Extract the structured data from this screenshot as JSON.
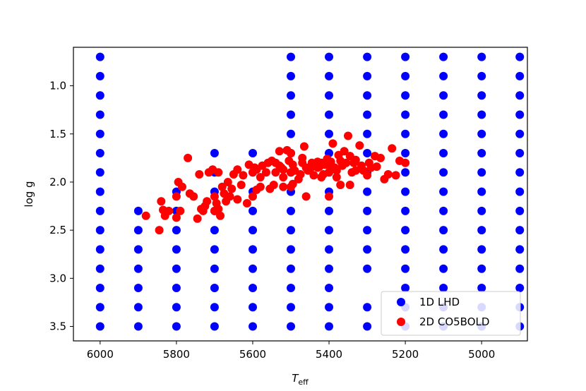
{
  "chart_data": {
    "type": "scatter",
    "title": "",
    "xlabel": "T",
    "xlabel_sub": "eff",
    "ylabel": "log g",
    "xlim": [
      6070,
      4880
    ],
    "ylim": [
      0.6,
      3.65
    ],
    "x_inverted": true,
    "y_inverted": true,
    "xticks": [
      6000,
      5800,
      5600,
      5400,
      5200,
      5000
    ],
    "xtick_labels": [
      "6000",
      "5800",
      "5600",
      "5400",
      "5200",
      "5000"
    ],
    "yticks": [
      1.0,
      1.5,
      2.0,
      2.5,
      3.0,
      3.5
    ],
    "ytick_labels": [
      "1.0",
      "1.5",
      "2.0",
      "2.5",
      "3.0",
      "3.5"
    ],
    "grid": false,
    "legend_position": "bottom-right",
    "series": [
      {
        "name": "1D LHD",
        "color": "#0000ff",
        "grid_teff": [
          6000,
          5900,
          5800,
          5700,
          5600,
          5500,
          5400,
          5300,
          5200,
          5100,
          5000,
          4900
        ],
        "grid_logg": [
          0.7,
          0.9,
          1.1,
          1.3,
          1.5,
          1.7,
          1.9,
          2.1,
          2.3,
          2.5,
          2.7,
          2.9,
          3.1,
          3.3,
          3.5
        ],
        "missing": [
          [
            5900,
            0.7
          ],
          [
            5900,
            0.9
          ],
          [
            5900,
            1.1
          ],
          [
            5900,
            1.3
          ],
          [
            5900,
            1.5
          ],
          [
            5900,
            1.7
          ],
          [
            5900,
            1.9
          ],
          [
            5900,
            2.1
          ],
          [
            5800,
            0.7
          ],
          [
            5800,
            0.9
          ],
          [
            5800,
            1.1
          ],
          [
            5800,
            1.3
          ],
          [
            5800,
            1.5
          ],
          [
            5800,
            1.7
          ],
          [
            5800,
            1.9
          ],
          [
            5700,
            0.7
          ],
          [
            5700,
            0.9
          ],
          [
            5700,
            1.1
          ],
          [
            5700,
            1.3
          ],
          [
            5700,
            1.5
          ],
          [
            5600,
            0.7
          ],
          [
            5600,
            0.9
          ],
          [
            5600,
            1.1
          ],
          [
            5600,
            1.3
          ],
          [
            5600,
            1.5
          ],
          [
            5300,
            3.1
          ]
        ]
      },
      {
        "name": "2D CO5BOLD",
        "color": "#ff0000",
        "points": [
          [
            5880,
            2.35
          ],
          [
            5845,
            2.5
          ],
          [
            5840,
            2.2
          ],
          [
            5830,
            2.35
          ],
          [
            5820,
            2.3
          ],
          [
            5800,
            2.37
          ],
          [
            5790,
            2.3
          ],
          [
            5800,
            2.15
          ],
          [
            5795,
            2.0
          ],
          [
            5785,
            2.05
          ],
          [
            5770,
            1.75
          ],
          [
            5765,
            2.12
          ],
          [
            5755,
            2.15
          ],
          [
            5745,
            2.38
          ],
          [
            5740,
            1.92
          ],
          [
            5730,
            2.3
          ],
          [
            5725,
            2.25
          ],
          [
            5720,
            2.2
          ],
          [
            5715,
            1.9
          ],
          [
            5705,
            1.87
          ],
          [
            5700,
            2.15
          ],
          [
            5690,
            1.9
          ],
          [
            5695,
            2.22
          ],
          [
            5690,
            2.28
          ],
          [
            5685,
            2.35
          ],
          [
            5680,
            2.05
          ],
          [
            5675,
            2.12
          ],
          [
            5670,
            2.2
          ],
          [
            5665,
            2.0
          ],
          [
            5655,
            2.07
          ],
          [
            5660,
            2.15
          ],
          [
            5650,
            1.92
          ],
          [
            5640,
            1.87
          ],
          [
            5630,
            2.03
          ],
          [
            5625,
            1.93
          ],
          [
            5615,
            2.22
          ],
          [
            5610,
            1.82
          ],
          [
            5600,
            1.9
          ],
          [
            5595,
            1.85
          ],
          [
            5590,
            1.87
          ],
          [
            5600,
            2.15
          ],
          [
            5590,
            2.08
          ],
          [
            5580,
            1.95
          ],
          [
            5580,
            2.05
          ],
          [
            5575,
            1.83
          ],
          [
            5565,
            1.9
          ],
          [
            5560,
            1.8
          ],
          [
            5550,
            1.78
          ],
          [
            5540,
            1.8
          ],
          [
            5530,
            1.83
          ],
          [
            5525,
            1.85
          ],
          [
            5520,
            1.87
          ],
          [
            5530,
            1.68
          ],
          [
            5510,
            1.67
          ],
          [
            5500,
            1.7
          ],
          [
            5505,
            1.78
          ],
          [
            5495,
            1.82
          ],
          [
            5490,
            1.88
          ],
          [
            5480,
            1.97
          ],
          [
            5475,
            1.92
          ],
          [
            5470,
            1.75
          ],
          [
            5465,
            1.63
          ],
          [
            5460,
            1.85
          ],
          [
            5455,
            1.88
          ],
          [
            5450,
            1.87
          ],
          [
            5445,
            1.8
          ],
          [
            5440,
            1.93
          ],
          [
            5430,
            1.79
          ],
          [
            5425,
            1.84
          ],
          [
            5420,
            1.8
          ],
          [
            5415,
            1.92
          ],
          [
            5410,
            1.82
          ],
          [
            5405,
            1.76
          ],
          [
            5400,
            1.82
          ],
          [
            5395,
            1.79
          ],
          [
            5390,
            1.6
          ],
          [
            5385,
            1.85
          ],
          [
            5380,
            1.95
          ],
          [
            5375,
            1.72
          ],
          [
            5370,
            1.78
          ],
          [
            5365,
            1.83
          ],
          [
            5360,
            1.68
          ],
          [
            5355,
            1.8
          ],
          [
            5350,
            1.52
          ],
          [
            5345,
            1.73
          ],
          [
            5340,
            1.9
          ],
          [
            5335,
            1.8
          ],
          [
            5330,
            1.77
          ],
          [
            5320,
            1.62
          ],
          [
            5315,
            1.83
          ],
          [
            5310,
            1.88
          ],
          [
            5300,
            1.93
          ],
          [
            5295,
            1.8
          ],
          [
            5290,
            1.85
          ],
          [
            5280,
            1.73
          ],
          [
            5275,
            1.84
          ],
          [
            5265,
            1.75
          ],
          [
            5255,
            1.97
          ],
          [
            5245,
            1.92
          ],
          [
            5235,
            1.65
          ],
          [
            5225,
            1.93
          ],
          [
            5215,
            1.78
          ],
          [
            5200,
            1.8
          ],
          [
            5555,
            2.07
          ],
          [
            5545,
            2.03
          ],
          [
            5520,
            1.95
          ],
          [
            5495,
            2.02
          ],
          [
            5460,
            2.15
          ],
          [
            5400,
            2.15
          ],
          [
            5370,
            2.03
          ],
          [
            5345,
            2.03
          ],
          [
            5330,
            1.88
          ],
          [
            5540,
            1.9
          ],
          [
            5500,
            1.9
          ],
          [
            5470,
            1.8
          ],
          [
            5430,
            1.85
          ],
          [
            5400,
            1.9
          ],
          [
            5380,
            1.88
          ],
          [
            5420,
            1.95
          ],
          [
            5500,
            2.05
          ],
          [
            5520,
            2.05
          ],
          [
            5640,
            2.18
          ],
          [
            5700,
            2.3
          ],
          [
            5735,
            2.28
          ],
          [
            5835,
            2.29
          ]
        ]
      }
    ]
  }
}
